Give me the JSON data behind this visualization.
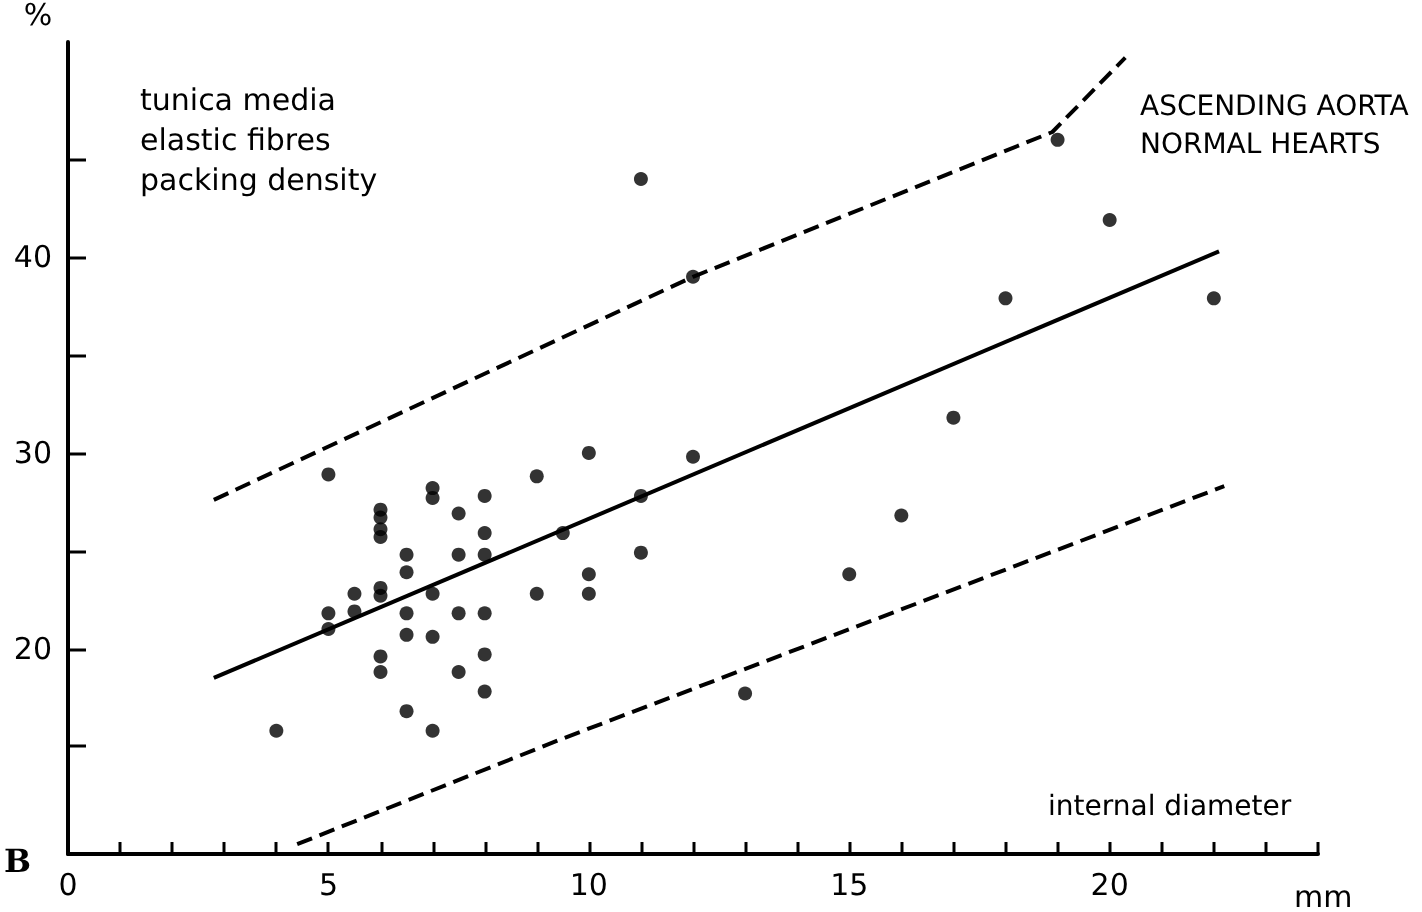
{
  "chart_data": {
    "type": "scatter",
    "xlabel": "mm",
    "ylabel": "%",
    "annotations": [
      "tunica media\nelastic fibres\npacking density",
      "ASCENDING AORTA\nNORMAL HEARTS",
      "internal diameter",
      "B"
    ],
    "xlim": [
      0,
      24
    ],
    "ylim": [
      9.5,
      51
    ],
    "xticks": [
      0,
      {
        "value": 1,
        "label": null
      },
      {
        "value": 2,
        "label": null
      },
      {
        "value": 3,
        "label": null
      },
      {
        "value": 4,
        "label": null
      },
      5,
      {
        "value": 6,
        "label": null
      },
      {
        "value": 7,
        "label": null
      },
      {
        "value": 8,
        "label": null
      },
      {
        "value": 9,
        "label": null
      },
      10,
      {
        "value": 11,
        "label": null
      },
      {
        "value": 12,
        "label": null
      },
      {
        "value": 13,
        "label": null
      },
      {
        "value": 14,
        "label": null
      },
      15,
      {
        "value": 16,
        "label": null
      },
      {
        "value": 17,
        "label": null
      },
      {
        "value": 18,
        "label": null
      },
      {
        "value": 19,
        "label": null
      },
      20,
      {
        "value": 21,
        "label": null
      },
      {
        "value": 22,
        "label": null
      },
      {
        "value": 23,
        "label": null
      },
      {
        "value": 24,
        "label": null
      }
    ],
    "yticks": [
      {
        "value": 15,
        "label": null
      },
      20,
      {
        "value": 25,
        "label": null
      },
      30,
      {
        "value": 35,
        "label": null
      },
      40,
      {
        "value": 45,
        "label": null
      }
    ],
    "grid": false,
    "series": [
      {
        "type": "scatter",
        "marker": "circle",
        "color": "#000000",
        "x": [
          4,
          5,
          5,
          5,
          5.5,
          5.5,
          6,
          6,
          6,
          6,
          6,
          6,
          6,
          6,
          6.5,
          6.5,
          6.5,
          6.5,
          6.5,
          7,
          7,
          7,
          7,
          7,
          7.5,
          7.5,
          7.5,
          7.5,
          8,
          8,
          8,
          8,
          8,
          8,
          9,
          9,
          9.5,
          10,
          10,
          10,
          11,
          11,
          11,
          12,
          12,
          13,
          15,
          16,
          17,
          18,
          19,
          20,
          22
        ],
        "values": [
          15.8,
          21,
          21.8,
          28.9,
          22.8,
          21.9,
          27.1,
          26.7,
          26.1,
          25.7,
          23.1,
          22.7,
          19.6,
          18.8,
          24.8,
          23.9,
          21.8,
          20.7,
          16.8,
          28.2,
          27.7,
          22.8,
          20.6,
          15.8,
          26.9,
          24.8,
          21.8,
          18.8,
          27.8,
          25.9,
          24.8,
          21.8,
          19.7,
          17.8,
          28.8,
          22.8,
          25.9,
          30,
          23.8,
          22.8,
          44,
          27.8,
          24.9,
          39,
          29.8,
          17.7,
          23.8,
          26.8,
          31.8,
          37.9,
          46,
          41.9,
          37.9
        ]
      },
      {
        "type": "line",
        "marker": "none",
        "line_style": "solid",
        "color": "#000000",
        "x": [
          2.8,
          22.1
        ],
        "values": [
          18.5,
          40.3
        ]
      },
      {
        "type": "line",
        "marker": "none",
        "line_style": "dashed",
        "color": "#000000",
        "x": [
          2.8,
          12,
          18.9,
          20.3
        ],
        "values": [
          27.6,
          39,
          46.4,
          50.2
        ]
      },
      {
        "type": "line",
        "marker": "none",
        "line_style": "dashed",
        "color": "#000000",
        "x": [
          4.4,
          9.5,
          22.2
        ],
        "values": [
          10,
          15.4,
          28.3
        ]
      }
    ]
  }
}
